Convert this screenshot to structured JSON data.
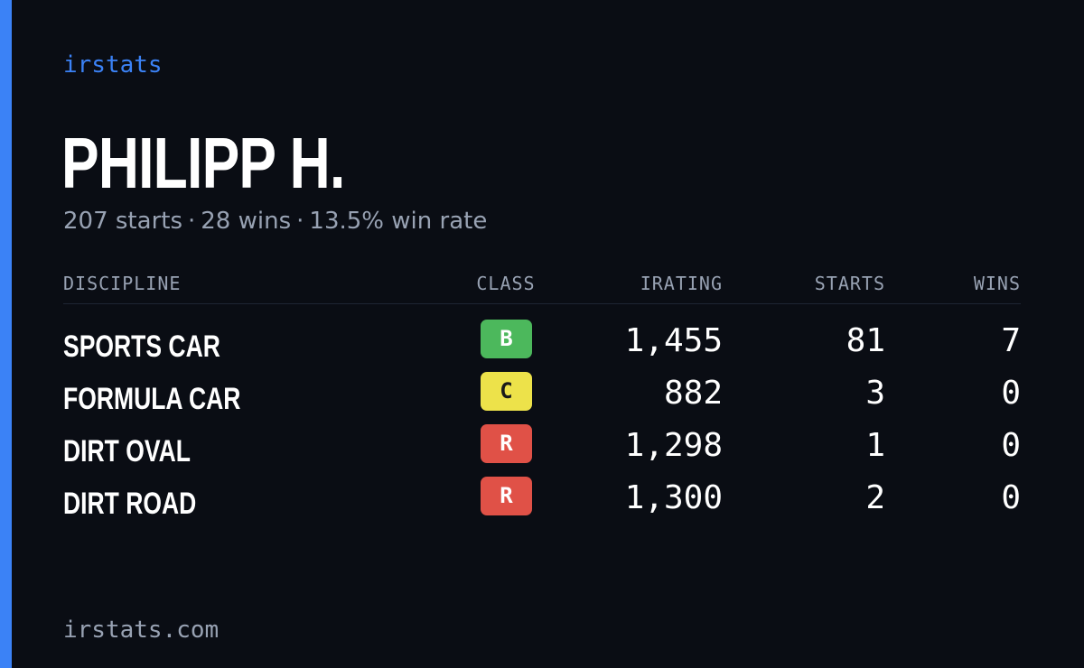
{
  "brand": "irstats",
  "driver": {
    "name": "PHILIPP H.",
    "starts": "207 starts",
    "wins": "28 wins",
    "win_rate": "13.5% win rate",
    "separator": "·"
  },
  "table": {
    "headers": {
      "discipline": "DISCIPLINE",
      "class": "CLASS",
      "irating": "IRATING",
      "starts": "STARTS",
      "wins": "WINS"
    },
    "rows": [
      {
        "discipline": "SPORTS CAR",
        "class": "B",
        "class_bg": "#4cb85c",
        "class_fg": "#ffffff",
        "irating": "1,455",
        "starts": "81",
        "wins": "7"
      },
      {
        "discipline": "FORMULA CAR",
        "class": "C",
        "class_bg": "#ede24a",
        "class_fg": "#1a1a1a",
        "irating": "882",
        "starts": "3",
        "wins": "0"
      },
      {
        "discipline": "DIRT OVAL",
        "class": "R",
        "class_bg": "#e05147",
        "class_fg": "#ffffff",
        "irating": "1,298",
        "starts": "1",
        "wins": "0"
      },
      {
        "discipline": "DIRT ROAD",
        "class": "R",
        "class_bg": "#e05147",
        "class_fg": "#ffffff",
        "irating": "1,300",
        "starts": "2",
        "wins": "0"
      }
    ]
  },
  "footer": "irstats.com",
  "colors": {
    "accent": "#3b82f6",
    "background": "#0a0d14",
    "muted": "#98a2b3"
  }
}
